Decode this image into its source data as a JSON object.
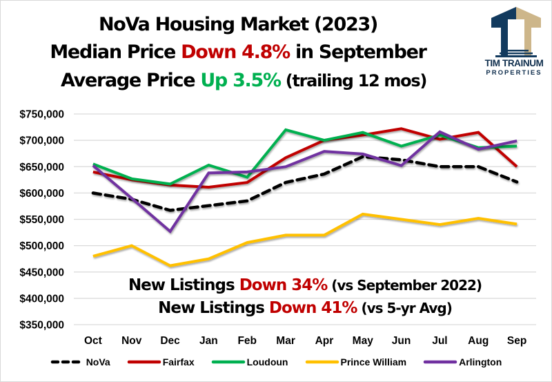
{
  "header": {
    "title_line1": "NoVa Housing Market (2023)",
    "title_line2_prefix": "Median Price ",
    "title_line2_highlight": "Down 4.8%",
    "title_line2_suffix": " in September",
    "title_line3_prefix": "Average Price ",
    "title_line3_highlight": "Up 3.5%",
    "title_line3_suffix": " (trailing 12 mos)"
  },
  "logo": {
    "name_line1": "TIM TRAINUM",
    "name_line2": "PROPERTIES",
    "colors": {
      "navy": "#123a5e",
      "tan": "#cdb68a"
    }
  },
  "annotations": {
    "line1_prefix": "New Listings ",
    "line1_highlight": "Down 34%",
    "line1_suffix": " (vs September 2022)",
    "line2_prefix": "New Listings ",
    "line2_highlight": "Down 41%",
    "line2_suffix": " (vs 5-yr Avg)"
  },
  "chart_data": {
    "type": "line",
    "title": "NoVa Housing Market (2023)",
    "xlabel": "",
    "ylabel": "",
    "categories": [
      "Oct",
      "Nov",
      "Dec",
      "Jan",
      "Feb",
      "Mar",
      "Apr",
      "May",
      "Jun",
      "Jul",
      "Aug",
      "Sep"
    ],
    "ylim": [
      350000,
      750000
    ],
    "yticks": [
      350000,
      400000,
      450000,
      500000,
      550000,
      600000,
      650000,
      700000,
      750000
    ],
    "ytick_labels": [
      "$350,000",
      "$400,000",
      "$450,000",
      "$500,000",
      "$550,000",
      "$600,000",
      "$650,000",
      "$700,000",
      "$750,000"
    ],
    "grid": true,
    "legend_position": "bottom",
    "series": [
      {
        "name": "NoVa",
        "color": "#000000",
        "dashed": true,
        "values": [
          600000,
          588000,
          567000,
          576000,
          585000,
          620000,
          636000,
          669000,
          663000,
          650000,
          650000,
          621000
        ]
      },
      {
        "name": "Fairfax",
        "color": "#c00000",
        "dashed": false,
        "values": [
          640000,
          625000,
          615000,
          611000,
          620000,
          667000,
          700000,
          710000,
          722000,
          702000,
          715000,
          650000
        ]
      },
      {
        "name": "Loudoun",
        "color": "#00b050",
        "dashed": false,
        "values": [
          655000,
          627000,
          617000,
          653000,
          630000,
          720000,
          700000,
          715000,
          689000,
          710000,
          686000,
          689000
        ]
      },
      {
        "name": "Prince William",
        "color": "#ffc000",
        "dashed": false,
        "values": [
          480000,
          500000,
          462000,
          475000,
          506000,
          520000,
          520000,
          560000,
          550000,
          540000,
          552000,
          541000
        ]
      },
      {
        "name": "Arlington",
        "color": "#7030a0",
        "dashed": false,
        "values": [
          652000,
          590000,
          527000,
          638000,
          640000,
          650000,
          679000,
          674000,
          652000,
          716000,
          683000,
          699000
        ]
      }
    ]
  }
}
